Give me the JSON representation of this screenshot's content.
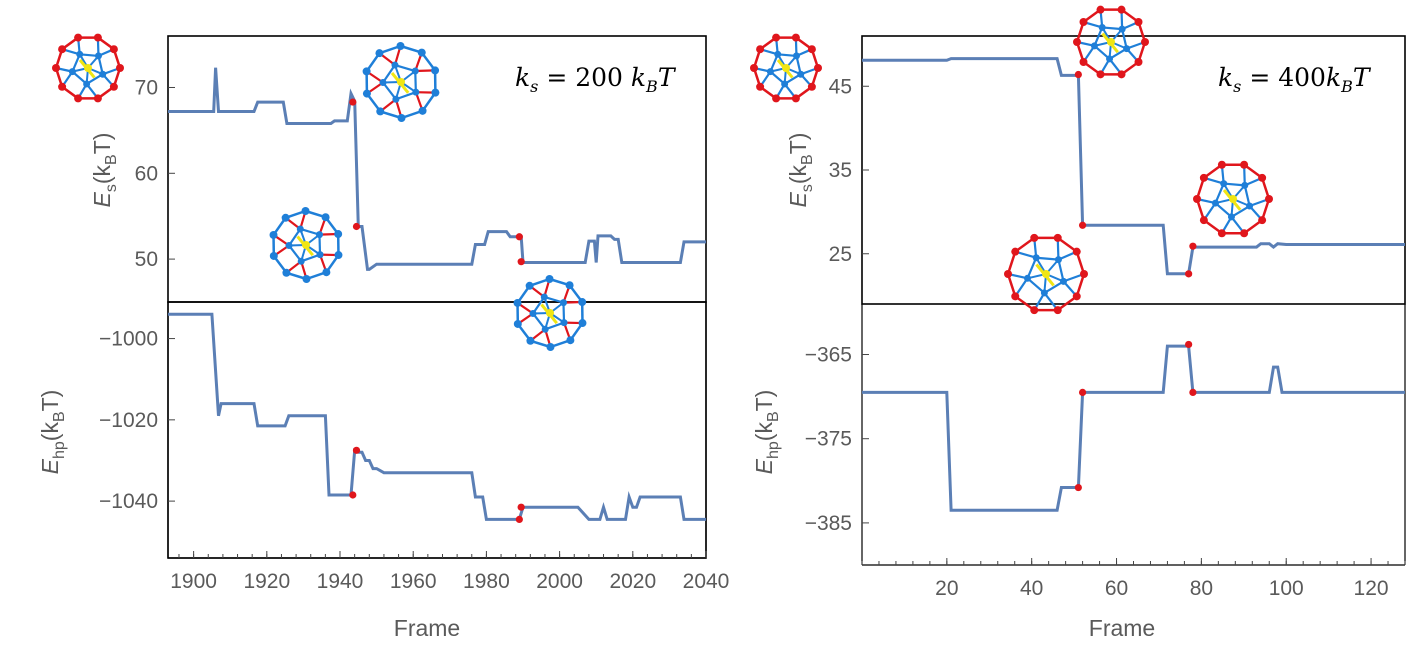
{
  "colors": {
    "series": "#5b7fb5",
    "marker": "#e0161c",
    "shell": "#e0161c",
    "inner": "#1f7fd8",
    "core": "#f0e614"
  },
  "chart_data": [
    {
      "type": "line",
      "panel": "left-top",
      "annotation_prefix": "k",
      "annotation_sub": "s",
      "annotation_mid": " = 200 ",
      "annotation_k2": "k",
      "annotation_sub2": "B",
      "annotation_T": "T",
      "ylabel_main": "E",
      "ylabel_sub": "s",
      "ylabel_unit_open": "(k",
      "ylabel_unit_sub": "B",
      "ylabel_unit_close": "T)",
      "xlim": [
        1893,
        2040
      ],
      "ylim": [
        45,
        76
      ],
      "yticks": [
        50,
        60,
        70
      ],
      "ytick_labels": [
        "50",
        "60",
        "70"
      ],
      "series": [
        {
          "x": [
            1893,
            1905.5,
            1906,
            1906.8,
            1907.5,
            1916.5,
            1917.5,
            1924.5,
            1925.5,
            1937.5,
            1938.5,
            1940,
            1941,
            1942,
            1943,
            1944,
            1945,
            1946,
            1947.5,
            1948,
            1950,
            1955,
            1970,
            1976,
            1977,
            1979.5,
            1980.5,
            1985.5,
            1986.5,
            1989,
            1989.5,
            1990,
            2002,
            2007,
            2008,
            2009,
            2009.5,
            2010,
            2010.5,
            2014,
            2015,
            2016,
            2017,
            2019.5,
            2020,
            2021,
            2022,
            2033,
            2034,
            2040
          ],
          "y": [
            67.2,
            67.2,
            72.3,
            67.2,
            67.2,
            67.2,
            68.3,
            68.3,
            65.8,
            65.8,
            66.1,
            66.1,
            66.1,
            66.1,
            69.3,
            68.4,
            53.8,
            53.8,
            48.8,
            48.8,
            49.4,
            49.4,
            49.4,
            49.4,
            51.7,
            51.7,
            53.2,
            53.2,
            52.6,
            52.6,
            52.6,
            49.6,
            49.6,
            49.6,
            52.1,
            52.1,
            52.1,
            49.6,
            52.7,
            52.7,
            52.3,
            52.3,
            49.6,
            49.6,
            49.6,
            49.6,
            49.6,
            49.6,
            52.0,
            52.0
          ]
        }
      ],
      "markers": [
        {
          "x": 1943.5,
          "y": 68.3
        },
        {
          "x": 1944.5,
          "y": 53.8
        },
        {
          "x": 1989,
          "y": 52.6
        },
        {
          "x": 1989.5,
          "y": 49.7
        }
      ]
    },
    {
      "type": "line",
      "panel": "left-bottom",
      "ylabel_main": "E",
      "ylabel_sub": "hp",
      "ylabel_unit_open": "(k",
      "ylabel_unit_sub": "B",
      "ylabel_unit_close": "T)",
      "xlabel": "Frame",
      "xlim": [
        1893,
        2040
      ],
      "ylim": [
        -1054,
        -991
      ],
      "xticks": [
        1900,
        1920,
        1940,
        1960,
        1980,
        2000,
        2020,
        2040
      ],
      "xtick_labels": [
        "1900",
        "1920",
        "1940",
        "1960",
        "1980",
        "2000",
        "2020",
        "2040"
      ],
      "yticks": [
        -1000,
        -1020,
        -1040
      ],
      "ytick_labels": [
        "−1000",
        "−1020",
        "−1040"
      ],
      "series": [
        {
          "x": [
            1893,
            1905,
            1906,
            1906.8,
            1907.5,
            1916.5,
            1917.5,
            1925,
            1926,
            1936,
            1937,
            1940,
            1941,
            1943,
            1944,
            1945,
            1946,
            1947,
            1948,
            1949,
            1950,
            1952,
            1975,
            1976,
            1977,
            1979,
            1980,
            1989,
            1990,
            2005,
            2008,
            2011,
            2012,
            2013,
            2014,
            2018,
            2019,
            2020,
            2021,
            2022,
            2033,
            2034,
            2040
          ],
          "y": [
            -994,
            -994,
            -1008,
            -1019,
            -1016,
            -1016,
            -1021.5,
            -1021.5,
            -1019,
            -1019,
            -1038.5,
            -1038.5,
            -1038.5,
            -1038.5,
            -1027.5,
            -1028,
            -1028,
            -1030,
            -1030,
            -1032,
            -1032,
            -1033,
            -1033,
            -1033,
            -1039,
            -1039,
            -1044.5,
            -1044.5,
            -1041.5,
            -1041.5,
            -1044.5,
            -1044.5,
            -1041.5,
            -1044.5,
            -1044.5,
            -1044.5,
            -1039,
            -1041.5,
            -1041.5,
            -1039,
            -1039,
            -1044.5,
            -1044.5
          ]
        }
      ],
      "markers": [
        {
          "x": 1943.5,
          "y": -1038.5
        },
        {
          "x": 1944.5,
          "y": -1027.5
        },
        {
          "x": 1989,
          "y": -1044.5
        },
        {
          "x": 1989.5,
          "y": -1041.5
        }
      ]
    },
    {
      "type": "line",
      "panel": "right-top",
      "annotation_prefix": "k",
      "annotation_sub": "s",
      "annotation_mid": " = 400",
      "annotation_k2": "k",
      "annotation_sub2": "B",
      "annotation_T": "T",
      "ylabel_main": "E",
      "ylabel_sub": "s",
      "ylabel_unit_open": "(k",
      "ylabel_unit_sub": "B",
      "ylabel_unit_close": "T)",
      "xlim": [
        0,
        128
      ],
      "ylim": [
        19,
        51
      ],
      "yticks": [
        25,
        35,
        45
      ],
      "ytick_labels": [
        "25",
        "35",
        "45"
      ],
      "series": [
        {
          "x": [
            0,
            20,
            21,
            46,
            47,
            50,
            51,
            52,
            53,
            70,
            71,
            72,
            76,
            77,
            78,
            93,
            94,
            96,
            97,
            98,
            100,
            101,
            128
          ],
          "y": [
            48.1,
            48.1,
            48.3,
            48.3,
            46.3,
            46.3,
            46.3,
            28.4,
            28.4,
            28.4,
            28.4,
            22.6,
            22.6,
            22.6,
            25.8,
            25.8,
            26.2,
            26.2,
            25.8,
            26.2,
            26.1,
            26.1,
            26.1
          ]
        }
      ],
      "markers": [
        {
          "x": 51,
          "y": 46.4
        },
        {
          "x": 52,
          "y": 28.4
        },
        {
          "x": 77,
          "y": 22.6
        },
        {
          "x": 78,
          "y": 25.9
        }
      ]
    },
    {
      "type": "line",
      "panel": "right-bottom",
      "ylabel_main": "E",
      "ylabel_sub": "hp",
      "ylabel_unit_open": "(k",
      "ylabel_unit_sub": "B",
      "ylabel_unit_close": "T)",
      "xlabel": "Frame",
      "xlim": [
        0,
        128
      ],
      "ylim": [
        -390,
        -359
      ],
      "xticks": [
        20,
        40,
        60,
        80,
        100,
        120
      ],
      "xtick_labels": [
        "20",
        "40",
        "60",
        "80",
        "100",
        "120"
      ],
      "yticks": [
        -365,
        -375,
        -385
      ],
      "ytick_labels": [
        "−365",
        "−375",
        "−385"
      ],
      "series": [
        {
          "x": [
            0,
            20,
            21,
            46,
            47,
            51,
            52,
            71,
            72,
            77,
            78,
            96,
            97,
            98,
            99,
            128
          ],
          "y": [
            -369.5,
            -369.5,
            -383.5,
            -383.5,
            -380.8,
            -380.8,
            -369.5,
            -369.5,
            -364,
            -364,
            -369.5,
            -369.5,
            -366.5,
            -366.5,
            -369.5,
            -369.5
          ]
        }
      ],
      "markers": [
        {
          "x": 51,
          "y": -380.8
        },
        {
          "x": 52,
          "y": -369.5
        },
        {
          "x": 77,
          "y": -363.8
        },
        {
          "x": 78,
          "y": -369.5
        }
      ]
    }
  ]
}
